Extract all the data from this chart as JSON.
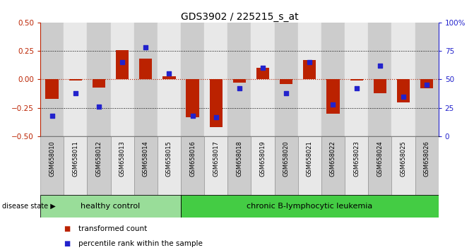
{
  "title": "GDS3902 / 225215_s_at",
  "samples": [
    "GSM658010",
    "GSM658011",
    "GSM658012",
    "GSM658013",
    "GSM658014",
    "GSM658015",
    "GSM658016",
    "GSM658017",
    "GSM658018",
    "GSM658019",
    "GSM658020",
    "GSM658021",
    "GSM658022",
    "GSM658023",
    "GSM658024",
    "GSM658025",
    "GSM658026"
  ],
  "red_bars": [
    -0.17,
    -0.01,
    -0.07,
    0.26,
    0.18,
    0.03,
    -0.33,
    -0.42,
    -0.03,
    0.1,
    -0.04,
    0.17,
    -0.3,
    -0.01,
    -0.12,
    -0.2,
    -0.08
  ],
  "blue_dots": [
    18,
    38,
    26,
    65,
    78,
    55,
    18,
    17,
    42,
    60,
    38,
    65,
    28,
    42,
    62,
    35,
    45
  ],
  "ylim_left": [
    -0.5,
    0.5
  ],
  "ylim_right": [
    0,
    100
  ],
  "yticks_left": [
    -0.5,
    -0.25,
    0.0,
    0.25,
    0.5
  ],
  "yticks_right": [
    0,
    25,
    50,
    75,
    100
  ],
  "group1_count": 6,
  "group1_label": "healthy control",
  "group2_label": "chronic B-lymphocytic leukemia",
  "legend1": "transformed count",
  "legend2": "percentile rank within the sample",
  "disease_state_label": "disease state",
  "red_color": "#bb2200",
  "blue_color": "#2222cc",
  "group1_color": "#99dd99",
  "group2_color": "#44cc44",
  "bar_width": 0.55,
  "dot_size": 18,
  "col_shade_even": "#cccccc",
  "col_shade_odd": "#e8e8e8"
}
